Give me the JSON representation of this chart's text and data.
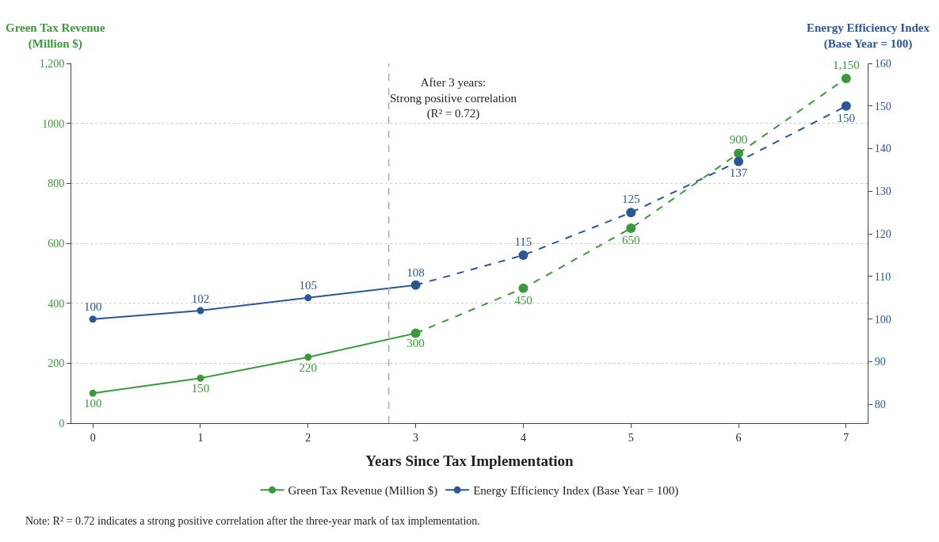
{
  "chart_data": {
    "type": "line",
    "xlabel": "Years Since Tax Implementation",
    "ylabel": "Green Tax Revenue\n(Million $)",
    "y2label": "Energy Efficiency Index\n(Base Year = 100)",
    "x": [
      0,
      1,
      2,
      3,
      4,
      5,
      6,
      7
    ],
    "xlim": [
      -0.2,
      7.2
    ],
    "xticks": [
      0,
      1,
      2,
      3,
      4,
      5,
      6,
      7
    ],
    "ylim": [
      0,
      1200
    ],
    "yticks": [
      0,
      200,
      400,
      600,
      800,
      1000,
      {
        "value": 1200,
        "label": "1,200"
      }
    ],
    "y2lim": [
      75.6,
      160
    ],
    "y2ticks": [
      80,
      90,
      100,
      110,
      120,
      130,
      140,
      150,
      160
    ],
    "series": [
      {
        "name": "Green Tax Revenue (Million $)",
        "color": "#3a9a3a",
        "line_style": "solid",
        "values": [
          100,
          150,
          220,
          300,
          null,
          null,
          null,
          null
        ],
        "value_labels": [
          "100",
          "150",
          "220",
          "300",
          null,
          null,
          null,
          null
        ]
      },
      {
        "color": "#3a9a3a",
        "line_style": "dashed",
        "values": [
          null,
          null,
          null,
          300,
          450,
          650,
          900,
          1150
        ],
        "value_labels": [
          null,
          null,
          null,
          null,
          "450",
          "650",
          "900",
          "1,150"
        ]
      },
      {
        "name": "Energy Efficiency Index (Base Year = 100)",
        "color": "#2b5797",
        "line_style": "solid",
        "axis": "y2",
        "values": [
          100,
          102,
          105,
          108,
          null,
          null,
          null,
          null
        ],
        "value_labels": [
          "100",
          "102",
          "105",
          "108",
          null,
          null,
          null,
          null
        ]
      },
      {
        "color": "#2b5797",
        "line_style": "dashed",
        "axis": "y2",
        "values": [
          null,
          null,
          null,
          108,
          115,
          125,
          137,
          150
        ],
        "value_labels": [
          null,
          null,
          null,
          null,
          "115",
          "125",
          "137",
          "150"
        ]
      }
    ],
    "ref_lines": [
      {
        "axis": "x",
        "value": 2.75,
        "color": "#aaaaaa",
        "line_style": "dashed"
      }
    ],
    "annotations": [
      "After 3 years:\nStrong positive correlation\n(R² = 0.72)",
      "Note: R² = 0.72 indicates a strong positive correlation after the three-year mark of tax implementation."
    ],
    "grid": "y",
    "legend": "bottom",
    "marker": "circle"
  }
}
